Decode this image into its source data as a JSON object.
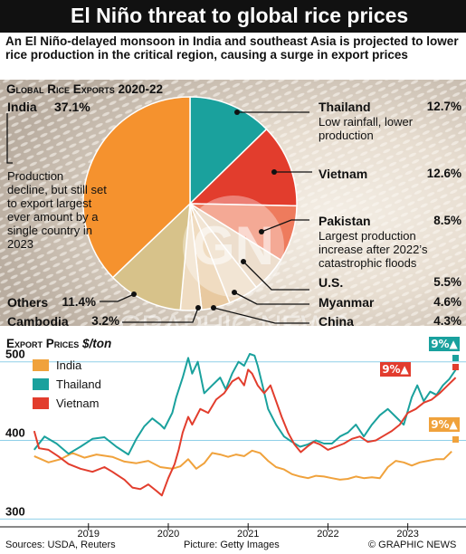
{
  "header": {
    "title": "El Niño threat to global rice prices",
    "subtitle": "An El Niño-delayed monsoon in India and southeast Asia is projected to lower rice production in the critical region, causing a surge in export prices"
  },
  "pie_section": {
    "title": "Global Rice Exports 2020-22",
    "india_note": "Production decline, but still set to export largest ever amount by a single country in 2023",
    "thailand_note": "Low rainfall, lower production",
    "pakistan_note": "Largest production increase after 2022’s catastrophic floods"
  },
  "line_section": {
    "title": "Export Prices",
    "unit": "$/ton",
    "badges": [
      {
        "text": "9%▲",
        "color": "#19a19e"
      },
      {
        "text": "9%▲",
        "color": "#e23c2e"
      },
      {
        "text": "9%▲",
        "color": "#f0a23c"
      }
    ]
  },
  "watermark": {
    "logo": "GN",
    "text": "GRAPHIC NEWS"
  },
  "footer": {
    "sources": "Sources: USDA, Reuters",
    "picture": "Picture: Getty Images",
    "copyright": "© GRAPHIC NEWS"
  },
  "colors": {
    "india": "#f5922e",
    "thailand": "#1aa19d",
    "vietnam": "#e23d2d",
    "pakistan": "#ee7b5d",
    "us": "#e3ccb3",
    "myanmar": "#ebd7be",
    "china": "#e8c9a0",
    "cambodia": "#efdcc2",
    "others": "#d7c28a",
    "header": "#111111",
    "line_series_india": "#f0a23c"
  },
  "chart_data": [
    {
      "type": "pie",
      "title": "Global Rice Exports 2020-22",
      "slices": [
        {
          "label": "India",
          "value": 37.1,
          "pct_text": "37.1%"
        },
        {
          "label": "Thailand",
          "value": 12.7,
          "pct_text": "12.7%"
        },
        {
          "label": "Vietnam",
          "value": 12.6,
          "pct_text": "12.6%"
        },
        {
          "label": "Pakistan",
          "value": 8.5,
          "pct_text": "8.5%"
        },
        {
          "label": "U.S.",
          "value": 5.5,
          "pct_text": "5.5%"
        },
        {
          "label": "Myanmar",
          "value": 4.6,
          "pct_text": "4.6%"
        },
        {
          "label": "China",
          "value": 4.3,
          "pct_text": "4.3%"
        },
        {
          "label": "Cambodia",
          "value": 3.2,
          "pct_text": "3.2%"
        },
        {
          "label": "Others",
          "value": 11.4,
          "pct_text": "11.4%"
        }
      ]
    },
    {
      "type": "line",
      "title": "Export Prices",
      "ylabel": "$/ton",
      "xlim": [
        2018.3,
        2023.65
      ],
      "ylim": [
        290,
        525
      ],
      "yticks": [
        300,
        400,
        500
      ],
      "xticks": [
        2019,
        2020,
        2021,
        2022,
        2023
      ],
      "legend_position": "top-left",
      "grid": false,
      "series": [
        {
          "name": "India",
          "points": [
            [
              2018.32,
              380
            ],
            [
              2018.5,
              372
            ],
            [
              2018.65,
              376
            ],
            [
              2018.8,
              384
            ],
            [
              2018.95,
              378
            ],
            [
              2019.1,
              382
            ],
            [
              2019.3,
              379
            ],
            [
              2019.45,
              373
            ],
            [
              2019.6,
              371
            ],
            [
              2019.75,
              374
            ],
            [
              2019.9,
              366
            ],
            [
              2020.05,
              364
            ],
            [
              2020.15,
              367
            ],
            [
              2020.25,
              376
            ],
            [
              2020.35,
              364
            ],
            [
              2020.45,
              371
            ],
            [
              2020.55,
              384
            ],
            [
              2020.65,
              382
            ],
            [
              2020.75,
              379
            ],
            [
              2020.85,
              382
            ],
            [
              2020.95,
              380
            ],
            [
              2021.05,
              387
            ],
            [
              2021.15,
              384
            ],
            [
              2021.25,
              374
            ],
            [
              2021.35,
              366
            ],
            [
              2021.45,
              363
            ],
            [
              2021.55,
              357
            ],
            [
              2021.65,
              354
            ],
            [
              2021.75,
              352
            ],
            [
              2021.85,
              355
            ],
            [
              2021.95,
              354
            ],
            [
              2022.05,
              352
            ],
            [
              2022.15,
              350
            ],
            [
              2022.25,
              351
            ],
            [
              2022.35,
              354
            ],
            [
              2022.45,
              352
            ],
            [
              2022.55,
              353
            ],
            [
              2022.65,
              352
            ],
            [
              2022.75,
              366
            ],
            [
              2022.85,
              374
            ],
            [
              2022.95,
              372
            ],
            [
              2023.05,
              368
            ],
            [
              2023.15,
              372
            ],
            [
              2023.25,
              374
            ],
            [
              2023.35,
              376
            ],
            [
              2023.45,
              376
            ],
            [
              2023.55,
              386
            ]
          ]
        },
        {
          "name": "Thailand",
          "points": [
            [
              2018.32,
              388
            ],
            [
              2018.45,
              405
            ],
            [
              2018.6,
              396
            ],
            [
              2018.75,
              383
            ],
            [
              2018.9,
              392
            ],
            [
              2019.05,
              402
            ],
            [
              2019.2,
              404
            ],
            [
              2019.35,
              392
            ],
            [
              2019.5,
              382
            ],
            [
              2019.6,
              402
            ],
            [
              2019.7,
              418
            ],
            [
              2019.8,
              428
            ],
            [
              2019.9,
              420
            ],
            [
              2019.95,
              415
            ],
            [
              2020.05,
              435
            ],
            [
              2020.1,
              455
            ],
            [
              2020.18,
              480
            ],
            [
              2020.25,
              505
            ],
            [
              2020.3,
              485
            ],
            [
              2020.37,
              500
            ],
            [
              2020.45,
              460
            ],
            [
              2020.55,
              470
            ],
            [
              2020.65,
              480
            ],
            [
              2020.72,
              465
            ],
            [
              2020.8,
              485
            ],
            [
              2020.88,
              500
            ],
            [
              2020.95,
              495
            ],
            [
              2021.02,
              510
            ],
            [
              2021.08,
              508
            ],
            [
              2021.12,
              495
            ],
            [
              2021.18,
              470
            ],
            [
              2021.25,
              440
            ],
            [
              2021.35,
              420
            ],
            [
              2021.45,
              405
            ],
            [
              2021.55,
              398
            ],
            [
              2021.65,
              392
            ],
            [
              2021.75,
              395
            ],
            [
              2021.85,
              400
            ],
            [
              2021.95,
              396
            ],
            [
              2022.05,
              396
            ],
            [
              2022.15,
              405
            ],
            [
              2022.25,
              410
            ],
            [
              2022.35,
              420
            ],
            [
              2022.45,
              405
            ],
            [
              2022.55,
              420
            ],
            [
              2022.65,
              432
            ],
            [
              2022.75,
              440
            ],
            [
              2022.85,
              430
            ],
            [
              2022.95,
              420
            ],
            [
              2023.05,
              455
            ],
            [
              2023.12,
              470
            ],
            [
              2023.2,
              450
            ],
            [
              2023.28,
              462
            ],
            [
              2023.36,
              458
            ],
            [
              2023.44,
              470
            ],
            [
              2023.52,
              478
            ],
            [
              2023.6,
              490
            ]
          ]
        },
        {
          "name": "Vietnam",
          "points": [
            [
              2018.32,
              412
            ],
            [
              2018.38,
              390
            ],
            [
              2018.5,
              388
            ],
            [
              2018.62,
              380
            ],
            [
              2018.75,
              370
            ],
            [
              2018.9,
              364
            ],
            [
              2019.05,
              360
            ],
            [
              2019.2,
              366
            ],
            [
              2019.3,
              360
            ],
            [
              2019.45,
              350
            ],
            [
              2019.55,
              340
            ],
            [
              2019.65,
              338
            ],
            [
              2019.75,
              344
            ],
            [
              2019.85,
              336
            ],
            [
              2019.92,
              330
            ],
            [
              2020.0,
              352
            ],
            [
              2020.08,
              370
            ],
            [
              2020.13,
              388
            ],
            [
              2020.18,
              410
            ],
            [
              2020.25,
              430
            ],
            [
              2020.3,
              420
            ],
            [
              2020.4,
              440
            ],
            [
              2020.5,
              435
            ],
            [
              2020.6,
              452
            ],
            [
              2020.7,
              460
            ],
            [
              2020.8,
              475
            ],
            [
              2020.88,
              480
            ],
            [
              2020.95,
              470
            ],
            [
              2021.0,
              490
            ],
            [
              2021.05,
              485
            ],
            [
              2021.12,
              470
            ],
            [
              2021.2,
              460
            ],
            [
              2021.28,
              470
            ],
            [
              2021.35,
              450
            ],
            [
              2021.42,
              430
            ],
            [
              2021.5,
              410
            ],
            [
              2021.58,
              395
            ],
            [
              2021.66,
              385
            ],
            [
              2021.74,
              392
            ],
            [
              2021.82,
              398
            ],
            [
              2021.9,
              395
            ],
            [
              2022.0,
              388
            ],
            [
              2022.1,
              392
            ],
            [
              2022.2,
              396
            ],
            [
              2022.3,
              402
            ],
            [
              2022.4,
              405
            ],
            [
              2022.5,
              398
            ],
            [
              2022.6,
              400
            ],
            [
              2022.7,
              406
            ],
            [
              2022.8,
              412
            ],
            [
              2022.9,
              420
            ],
            [
              2023.0,
              435
            ],
            [
              2023.1,
              440
            ],
            [
              2023.2,
              448
            ],
            [
              2023.3,
              452
            ],
            [
              2023.4,
              460
            ],
            [
              2023.5,
              470
            ],
            [
              2023.6,
              480
            ]
          ]
        }
      ]
    }
  ]
}
